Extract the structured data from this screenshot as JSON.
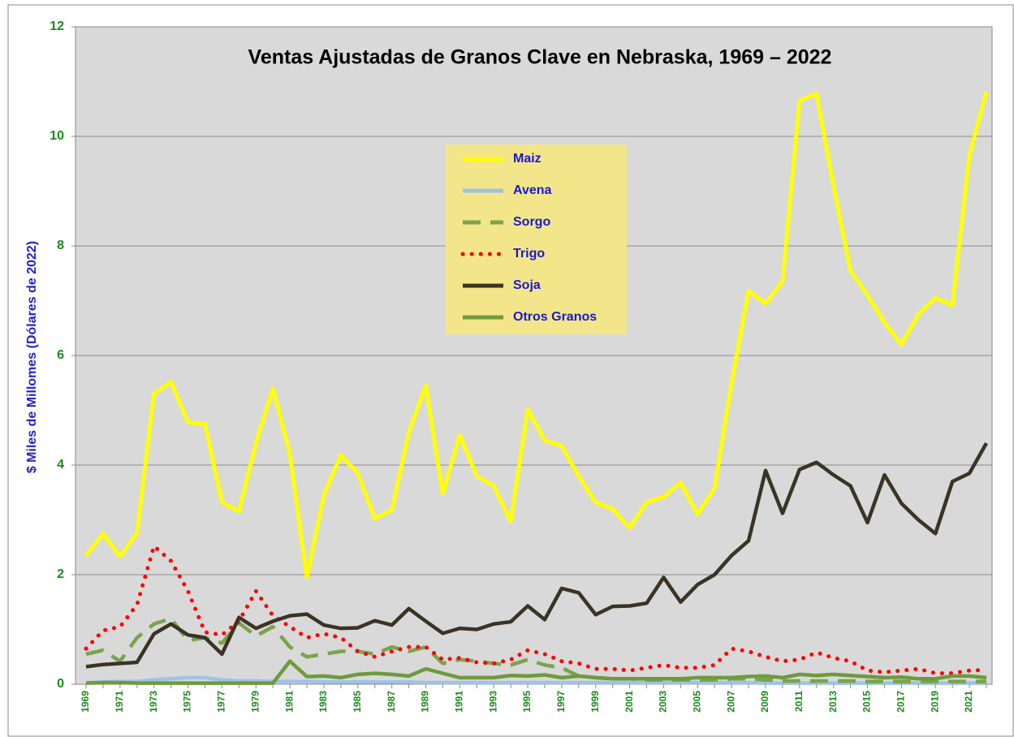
{
  "chart_data": {
    "type": "line",
    "title": "Ventas Ajustadas de Granos Clave en Nebraska, 1969 – 2022",
    "ylabel": "$ Miles de Millomes (Dólares de 2022)",
    "categories": [
      "1969",
      null,
      "1971",
      null,
      "1973",
      null,
      "1975",
      null,
      "1977",
      null,
      "1979",
      null,
      "1981",
      null,
      "1983",
      null,
      "1985",
      null,
      "1987",
      null,
      "1989",
      null,
      "1991",
      null,
      "1993",
      null,
      "1995",
      null,
      "1997",
      null,
      "1999",
      null,
      "2001",
      null,
      "2003",
      null,
      "2005",
      null,
      "2007",
      null,
      "2009",
      null,
      "2011",
      null,
      "2013",
      null,
      "2015",
      null,
      "2017",
      null,
      "2019",
      null,
      "2021",
      null
    ],
    "ylim": [
      0,
      12
    ],
    "yticks": [
      0,
      2,
      4,
      6,
      8,
      10,
      12
    ],
    "grid": true,
    "series": [
      {
        "name": "Maiz",
        "color": "#ffff00",
        "line_style": "solid",
        "values": [
          2.34,
          2.75,
          2.33,
          2.75,
          5.3,
          5.52,
          4.78,
          4.75,
          3.32,
          3.15,
          4.4,
          5.4,
          4.2,
          1.95,
          3.45,
          4.18,
          3.85,
          3.02,
          3.18,
          4.6,
          5.45,
          3.48,
          4.55,
          3.8,
          3.62,
          2.97,
          5.02,
          4.45,
          4.35,
          3.8,
          3.32,
          3.2,
          2.85,
          3.32,
          3.42,
          3.68,
          3.1,
          3.58,
          5.5,
          7.18,
          6.95,
          7.35,
          10.65,
          10.78,
          9.1,
          7.55,
          7.1,
          6.6,
          6.2,
          6.75,
          7.05,
          6.92,
          9.65,
          10.82
        ]
      },
      {
        "name": "Avena",
        "color": "#9dc3e6",
        "line_style": "solid",
        "values": [
          0.03,
          0.04,
          0.05,
          0.05,
          0.08,
          0.1,
          0.12,
          0.12,
          0.08,
          0.06,
          0.06,
          0.05,
          0.05,
          0.05,
          0.04,
          0.04,
          0.04,
          0.04,
          0.04,
          0.04,
          0.03,
          0.03,
          0.03,
          0.03,
          0.03,
          0.03,
          0.03,
          0.03,
          0.03,
          0.03,
          0.03,
          0.03,
          0.03,
          0.03,
          0.03,
          0.03,
          0.03,
          0.03,
          0.03,
          0.03,
          0.02,
          0.02,
          0.02,
          0.02,
          0.02,
          0.02,
          0.02,
          0.02,
          0.02,
          0.02,
          0.02,
          0.02,
          0.02,
          0.02
        ]
      },
      {
        "name": "Sorgo",
        "color": "#7aa34c",
        "line_style": "dashed",
        "values": [
          0.55,
          0.62,
          0.42,
          0.85,
          1.1,
          1.2,
          0.8,
          0.85,
          0.75,
          1.12,
          0.88,
          1.05,
          0.68,
          0.5,
          0.55,
          0.6,
          0.6,
          0.55,
          0.68,
          0.6,
          0.68,
          0.38,
          0.45,
          0.42,
          0.38,
          0.35,
          0.45,
          0.35,
          0.3,
          0.15,
          0.12,
          0.1,
          0.1,
          0.08,
          0.08,
          0.08,
          0.08,
          0.08,
          0.1,
          0.1,
          0.08,
          0.06,
          0.06,
          0.06,
          0.06,
          0.06,
          0.05,
          0.05,
          0.05,
          0.05,
          0.05,
          0.05,
          0.05,
          0.05
        ]
      },
      {
        "name": "Trigo",
        "color": "#ff0000",
        "line_style": "dotted",
        "values": [
          0.65,
          0.98,
          1.05,
          1.45,
          2.52,
          2.25,
          1.7,
          0.95,
          0.9,
          1.15,
          1.7,
          1.25,
          1.05,
          0.85,
          0.92,
          0.85,
          0.6,
          0.5,
          0.6,
          0.68,
          0.68,
          0.45,
          0.48,
          0.4,
          0.38,
          0.45,
          0.62,
          0.55,
          0.42,
          0.38,
          0.28,
          0.28,
          0.25,
          0.3,
          0.35,
          0.3,
          0.3,
          0.35,
          0.65,
          0.6,
          0.5,
          0.42,
          0.45,
          0.58,
          0.48,
          0.42,
          0.25,
          0.22,
          0.25,
          0.28,
          0.2,
          0.2,
          0.25,
          0.26
        ]
      },
      {
        "name": "Soja",
        "color": "#3b3324",
        "line_style": "solid",
        "values": [
          0.32,
          0.36,
          0.38,
          0.4,
          0.92,
          1.1,
          0.9,
          0.85,
          0.55,
          1.22,
          1.02,
          1.15,
          1.25,
          1.28,
          1.08,
          1.02,
          1.03,
          1.16,
          1.08,
          1.38,
          1.15,
          0.93,
          1.02,
          1.0,
          1.1,
          1.14,
          1.43,
          1.18,
          1.75,
          1.67,
          1.27,
          1.42,
          1.43,
          1.48,
          1.95,
          1.5,
          1.82,
          2.0,
          2.35,
          2.62,
          3.9,
          3.12,
          3.92,
          4.05,
          3.82,
          3.62,
          2.95,
          3.82,
          3.3,
          3.0,
          2.75,
          3.7,
          3.85,
          4.4
        ]
      },
      {
        "name": "Otros Granos",
        "color": "#6e9a3c",
        "line_style": "solid",
        "values": [
          0.02,
          0.03,
          0.03,
          0.02,
          0.02,
          0.02,
          0.02,
          0.02,
          0.02,
          0.02,
          0.02,
          0.02,
          0.42,
          0.14,
          0.15,
          0.12,
          0.18,
          0.2,
          0.18,
          0.15,
          0.28,
          0.2,
          0.12,
          0.12,
          0.12,
          0.16,
          0.15,
          0.17,
          0.12,
          0.15,
          0.12,
          0.1,
          0.1,
          0.1,
          0.1,
          0.1,
          0.12,
          0.12,
          0.12,
          0.14,
          0.15,
          0.12,
          0.18,
          0.16,
          0.18,
          0.16,
          0.14,
          0.12,
          0.13,
          0.1,
          0.1,
          0.15,
          0.15,
          0.12
        ]
      }
    ]
  }
}
